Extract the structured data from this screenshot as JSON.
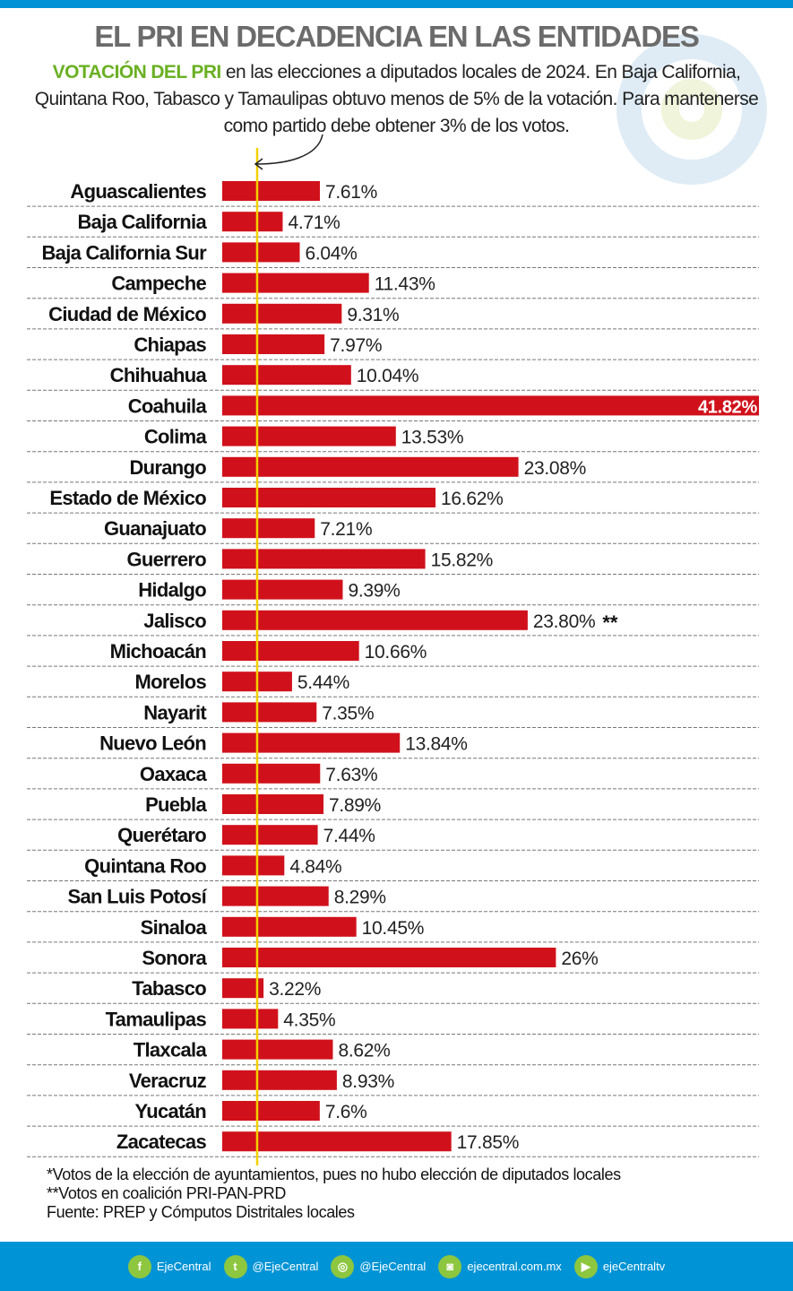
{
  "header": {
    "title": "EL PRI EN DECADENCIA EN LAS ENTIDADES",
    "subtitle_highlight": "VOTACIÓN DEL PRI",
    "subtitle_text": " en las elecciones a diputados locales de 2024. En Baja California, Quintana Roo, Tabasco y Tamaulipas obtuvo menos de 5% de la votación. Para mantenerse como partido debe obtener 3% de los votos."
  },
  "chart_data": {
    "type": "bar",
    "orientation": "horizontal",
    "threshold": 3,
    "colors": {
      "bar": "#d0111b",
      "threshold": "#f5d000",
      "highlight_text": "#6ab023"
    },
    "categories": [
      "Aguascalientes",
      "Baja California",
      "Baja California Sur",
      "Campeche",
      "Ciudad de México",
      "Chiapas",
      "Chihuahua",
      "Coahuila",
      "Colima",
      "Durango",
      "Estado de México",
      "Guanajuato",
      "Guerrero",
      "Hidalgo",
      "Jalisco",
      "Michoacán",
      "Morelos",
      "Nayarit",
      "Nuevo León",
      "Oaxaca",
      "Puebla",
      "Querétaro",
      "Quintana Roo",
      "San Luis Potosí",
      "Sinaloa",
      "Sonora",
      "Tabasco",
      "Tamaulipas",
      "Tlaxcala",
      "Veracruz",
      "Yucatán",
      "Zacatecas"
    ],
    "values": [
      7.61,
      4.71,
      6.04,
      11.43,
      9.31,
      7.97,
      10.04,
      41.82,
      13.53,
      23.08,
      16.62,
      7.21,
      15.82,
      9.39,
      23.8,
      10.66,
      5.44,
      7.35,
      13.84,
      7.63,
      7.89,
      7.44,
      4.84,
      8.29,
      10.45,
      26,
      3.22,
      4.35,
      8.62,
      8.93,
      7.6,
      17.85
    ],
    "labels": [
      "7.61%",
      "4.71%",
      "6.04%",
      "11.43%",
      "9.31%",
      "7.97%",
      "10.04%",
      "41.82%",
      "13.53%",
      "23.08%",
      "16.62%",
      "7.21%",
      "15.82%",
      "9.39%",
      "23.80%",
      "10.66%",
      "5.44%",
      "7.35%",
      "13.84%",
      "7.63%",
      "7.89%",
      "7.44%",
      "4.84%",
      "8.29%",
      "10.45%",
      "26%",
      "3.22%",
      "4.35%",
      "8.62%",
      "8.93%",
      "7.6%",
      "17.85%"
    ],
    "annotations": {
      "Jalisco": "**"
    },
    "xlim": [
      0,
      41.82
    ]
  },
  "notes": [
    "*Votos de la elección de ayuntamientos, pues no hubo elección de diputados locales",
    "**Votos en coalición PRI-PAN-PRD",
    "Fuente: PREP y Cómputos Distritales locales"
  ],
  "footer": [
    {
      "icon": "facebook-icon",
      "glyph": "f",
      "label": "EjeCentral"
    },
    {
      "icon": "twitter-icon",
      "glyph": "t",
      "label": "@EjeCentral"
    },
    {
      "icon": "location-icon",
      "glyph": "◎",
      "label": "@EjeCentral"
    },
    {
      "icon": "instagram-icon",
      "glyph": "◙",
      "label": "ejecentral.com.mx"
    },
    {
      "icon": "youtube-icon",
      "glyph": "▶",
      "label": "ejeCentraltv"
    }
  ]
}
